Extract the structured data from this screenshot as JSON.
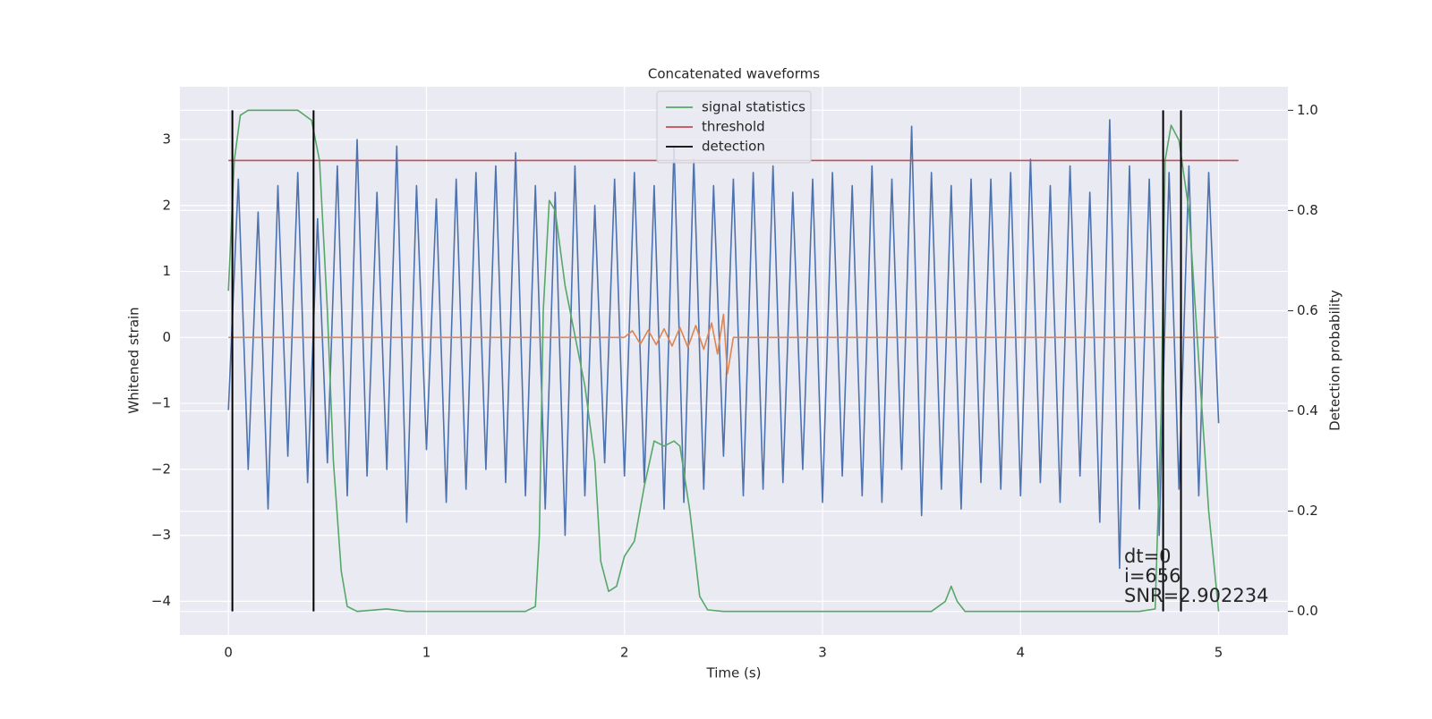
{
  "chart_data": {
    "type": "line",
    "title": "Concatenated waveforms",
    "xlabel": "Time (s)",
    "ylabel": "Whitened strain",
    "y2label": "Detection probability",
    "xlim": [
      -0.245,
      5.35
    ],
    "ylim": [
      -4.51,
      3.8
    ],
    "y2lim": [
      -0.047,
      1.047
    ],
    "xticks": [
      0,
      1,
      2,
      3,
      4,
      5
    ],
    "yticks": [
      {
        "value": -4,
        "label": "−4"
      },
      {
        "value": -3,
        "label": "−3"
      },
      {
        "value": -2,
        "label": "−2"
      },
      {
        "value": -1,
        "label": "−1"
      },
      0,
      1,
      2,
      3
    ],
    "y2ticks": [
      {
        "value": 0,
        "label": "0.0"
      },
      0.2,
      0.4,
      0.6,
      0.8,
      {
        "value": 1,
        "label": "1.0"
      }
    ],
    "grid": true,
    "legend": "upper center",
    "series": [
      {
        "color": "#4c72b0",
        "x": [
          0,
          0.05,
          0.1,
          0.15,
          0.2,
          0.25,
          0.3,
          0.35,
          0.4,
          0.45,
          0.5,
          0.55,
          0.6,
          0.65,
          0.7,
          0.75,
          0.8,
          0.85,
          0.9,
          0.95,
          1,
          1.05,
          1.1,
          1.15,
          1.2,
          1.25,
          1.3,
          1.35,
          1.4,
          1.45,
          1.5,
          1.55,
          1.6,
          1.65,
          1.7,
          1.75,
          1.8,
          1.85,
          1.9,
          1.95,
          2,
          2.05,
          2.1,
          2.15,
          2.2,
          2.25,
          2.3,
          2.35,
          2.4,
          2.45,
          2.5,
          2.55,
          2.6,
          2.65,
          2.7,
          2.75,
          2.8,
          2.85,
          2.9,
          2.95,
          3,
          3.05,
          3.1,
          3.15,
          3.2,
          3.25,
          3.3,
          3.35,
          3.4,
          3.45,
          3.5,
          3.55,
          3.6,
          3.65,
          3.7,
          3.75,
          3.8,
          3.85,
          3.9,
          3.95,
          4,
          4.05,
          4.1,
          4.15,
          4.2,
          4.25,
          4.3,
          4.35,
          4.4,
          4.45,
          4.5,
          4.55,
          4.6,
          4.65,
          4.7,
          4.75,
          4.8,
          4.85,
          4.9,
          4.95,
          5
        ],
        "values": [
          -1.1,
          2.4,
          -2.0,
          1.9,
          -2.6,
          2.3,
          -1.8,
          2.5,
          -2.2,
          1.8,
          -1.9,
          2.6,
          -2.4,
          3.0,
          -2.1,
          2.2,
          -2.0,
          2.9,
          -2.8,
          2.3,
          -1.7,
          2.1,
          -2.5,
          2.4,
          -2.3,
          2.5,
          -2.0,
          2.6,
          -2.2,
          2.8,
          -2.4,
          2.3,
          -2.6,
          2.2,
          -3.0,
          2.6,
          -2.4,
          2.0,
          -1.9,
          2.4,
          -2.1,
          2.5,
          -2.2,
          2.3,
          -2.6,
          2.9,
          -2.5,
          2.7,
          -2.3,
          2.3,
          -1.8,
          2.4,
          -2.4,
          2.5,
          -2.3,
          2.6,
          -2.2,
          2.2,
          -2.0,
          2.4,
          -2.5,
          2.5,
          -2.1,
          2.3,
          -2.4,
          2.6,
          -2.5,
          2.4,
          -2.0,
          3.2,
          -2.7,
          2.5,
          -2.3,
          2.3,
          -2.6,
          2.4,
          -2.2,
          2.4,
          -2.3,
          2.5,
          -2.4,
          2.7,
          -2.2,
          2.3,
          -2.5,
          2.6,
          -2.1,
          2.2,
          -2.8,
          3.3,
          -3.5,
          2.6,
          -2.6,
          2.4,
          -3.0,
          2.5,
          -2.3,
          2.6,
          -2.4,
          2.5,
          -1.3
        ]
      },
      {
        "color": "#dd8452",
        "x": [
          0,
          2,
          2.04,
          2.08,
          2.12,
          2.16,
          2.2,
          2.24,
          2.28,
          2.32,
          2.36,
          2.4,
          2.44,
          2.47,
          2.5,
          2.52,
          2.55,
          5
        ],
        "values": [
          0,
          0,
          0.1,
          -0.1,
          0.11,
          -0.11,
          0.13,
          -0.13,
          0.15,
          -0.15,
          0.18,
          -0.18,
          0.22,
          -0.25,
          0.35,
          -0.55,
          0,
          0
        ]
      },
      {
        "name": "signal statistics",
        "color": "#55a868",
        "axis": "y2",
        "x": [
          0,
          0.03,
          0.06,
          0.1,
          0.35,
          0.42,
          0.46,
          0.5,
          0.53,
          0.57,
          0.6,
          0.65,
          0.8,
          0.9,
          1.5,
          1.55,
          1.57,
          1.59,
          1.62,
          1.65,
          1.7,
          1.8,
          1.85,
          1.88,
          1.92,
          1.96,
          2.0,
          2.05,
          2.1,
          2.15,
          2.2,
          2.25,
          2.28,
          2.33,
          2.38,
          2.42,
          2.5,
          3.55,
          3.62,
          3.65,
          3.68,
          3.72,
          4.6,
          4.68,
          4.71,
          4.73,
          4.76,
          4.8,
          4.85,
          4.9,
          4.95,
          5.0
        ],
        "values": [
          0.64,
          0.9,
          0.99,
          1.0,
          1.0,
          0.98,
          0.9,
          0.6,
          0.3,
          0.08,
          0.01,
          0.0,
          0.005,
          0.0,
          0.0,
          0.01,
          0.15,
          0.6,
          0.82,
          0.8,
          0.65,
          0.45,
          0.3,
          0.1,
          0.04,
          0.05,
          0.11,
          0.14,
          0.25,
          0.34,
          0.33,
          0.34,
          0.33,
          0.2,
          0.03,
          0.003,
          0.0,
          0.0,
          0.02,
          0.05,
          0.02,
          0.0,
          0.0,
          0.005,
          0.4,
          0.9,
          0.97,
          0.94,
          0.8,
          0.5,
          0.2,
          0.0
        ]
      },
      {
        "name": "threshold",
        "color": "#c44e52",
        "axis": "y2",
        "x": [
          0,
          5.1
        ],
        "values": [
          0.9,
          0.9
        ]
      },
      {
        "name": "detection",
        "color": "#000000",
        "axis": "y2",
        "type": "vlines",
        "x": [
          0.02,
          0.43,
          4.72,
          4.81
        ],
        "ymin": 0,
        "ymax": 1
      }
    ],
    "annotations": [
      "dt=0",
      "i=656",
      "SNR=2.902234"
    ]
  }
}
